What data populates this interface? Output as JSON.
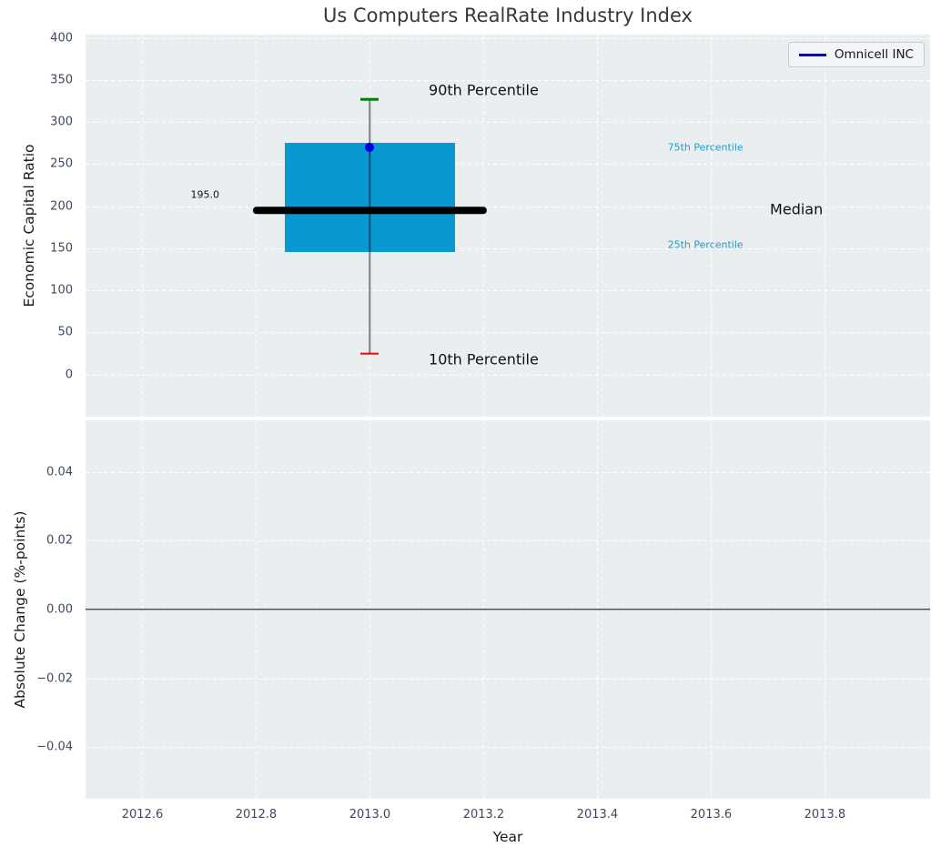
{
  "figure": {
    "title": "Us Computers RealRate Industry Index"
  },
  "colors": {
    "plot_background": "#e9eef0",
    "gridline": "#ffffff",
    "tick_label": "#3d4a5c",
    "title_text": "#33383d",
    "box_fill": "#0998cf",
    "median_line": "#000000",
    "whisker": "rgba(0,0,0,0.48)",
    "p90_cap": "#008000",
    "p10_cap": "#fd0000",
    "company_point": "#0000e1",
    "percentile_label": "#1f9bce",
    "annotation_text": "#111111",
    "zero_line": "#000000"
  },
  "chart_data": [
    {
      "type": "boxplot",
      "title": "Us Computers RealRate Industry Index",
      "ylabel": "Economic Capital Ratio",
      "xlabel": "",
      "xlim": [
        2012.5,
        2013.985
      ],
      "ylim": [
        -50,
        404
      ],
      "grid": true,
      "show_xtick_labels": false,
      "legend": {
        "label": "Omnicell INC",
        "position": "upper right"
      },
      "xticks": [
        {
          "v": 2012.6,
          "label": "2012.6"
        },
        {
          "v": 2012.8,
          "label": "2012.8"
        },
        {
          "v": 2013.0,
          "label": "2013.0"
        },
        {
          "v": 2013.2,
          "label": "2013.2"
        },
        {
          "v": 2013.4,
          "label": "2013.4"
        },
        {
          "v": 2013.6,
          "label": "2013.6"
        },
        {
          "v": 2013.8,
          "label": "2013.8"
        }
      ],
      "yticks": [
        {
          "v": 0,
          "label": "0"
        },
        {
          "v": 50,
          "label": "50"
        },
        {
          "v": 100,
          "label": "100"
        },
        {
          "v": 150,
          "label": "150"
        },
        {
          "v": 200,
          "label": "200"
        },
        {
          "v": 250,
          "label": "250"
        },
        {
          "v": 300,
          "label": "300"
        },
        {
          "v": 350,
          "label": "350"
        },
        {
          "v": 400,
          "label": "400"
        }
      ],
      "series": [
        {
          "name": "Omnicell INC",
          "type": "scatter",
          "color": "#0000e1",
          "x": [
            2013.0
          ],
          "y": [
            270
          ]
        }
      ],
      "box": {
        "x_center": 2013.0,
        "p10": 25,
        "p25": 146,
        "median": 195.0,
        "p75": 275,
        "p90": 327,
        "median_label": "195.0",
        "box_half_width": 0.15,
        "median_half_width": 0.205,
        "cap_half_width": 0.016
      },
      "annotations": [
        {
          "text": "90th Percentile",
          "x": 2013.2,
          "y": 338,
          "color": "#111111",
          "size": 16
        },
        {
          "text": "10th Percentile",
          "x": 2013.2,
          "y": 18,
          "color": "#111111",
          "size": 16
        },
        {
          "text": "75th Percentile",
          "x": 2013.59,
          "y": 270,
          "color": "#1f9bce",
          "size": 11
        },
        {
          "text": "25th Percentile",
          "x": 2013.59,
          "y": 154,
          "color": "#1f9bce",
          "size": 11
        },
        {
          "text": "Median",
          "x": 2013.75,
          "y": 196,
          "color": "#111111",
          "size": 16
        },
        {
          "text": "195.0",
          "x": 2012.71,
          "y": 214,
          "color": "#111111",
          "size": 11
        }
      ]
    },
    {
      "type": "line",
      "title": "",
      "ylabel": "Absolute Change (%-points)",
      "xlabel": "Year",
      "xlim": [
        2012.5,
        2013.985
      ],
      "ylim": [
        -0.055,
        0.055
      ],
      "grid": true,
      "show_xtick_labels": true,
      "xticks": [
        {
          "v": 2012.6,
          "label": "2012.6"
        },
        {
          "v": 2012.8,
          "label": "2012.8"
        },
        {
          "v": 2013.0,
          "label": "2013.0"
        },
        {
          "v": 2013.2,
          "label": "2013.2"
        },
        {
          "v": 2013.4,
          "label": "2013.4"
        },
        {
          "v": 2013.6,
          "label": "2013.6"
        },
        {
          "v": 2013.8,
          "label": "2013.8"
        }
      ],
      "yticks": [
        {
          "v": 0.04,
          "label": "0.04"
        },
        {
          "v": 0.02,
          "label": "0.02"
        },
        {
          "v": 0,
          "label": "0.00"
        },
        {
          "v": -0.02,
          "label": "−0.02"
        },
        {
          "v": -0.04,
          "label": "−0.04"
        }
      ],
      "series": [],
      "zero_line": 0
    }
  ]
}
